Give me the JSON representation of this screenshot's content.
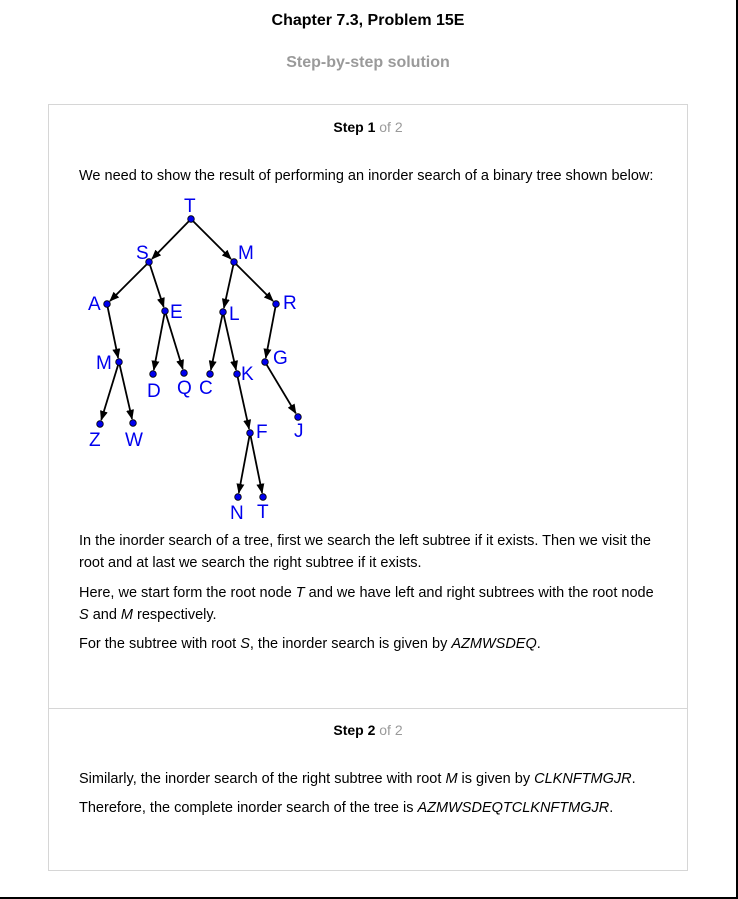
{
  "header": {
    "title": "Chapter 7.3, Problem 15E",
    "subtitle": "Step-by-step solution"
  },
  "step1": {
    "label": "Step 1",
    "of": "of 2",
    "intro": "We need to show the result of performing an inorder search of a binary tree shown below:",
    "para1": "In the inorder search of a tree, first we search the left subtree if it exists. Then we visit the root and at last we search the right subtree if it exists.",
    "para2": {
      "a": "Here, we start form the root node ",
      "v1": "T",
      "b": " and we have left and right subtrees with the root node ",
      "v2": "S",
      "c": " and ",
      "v3": "M",
      "d": " respectively."
    },
    "para3": {
      "a": "For the subtree with root ",
      "v1": "S",
      "b": ", the inorder search is given by ",
      "v2": "AZMWSDEQ",
      "c": "."
    }
  },
  "step2": {
    "label": "Step 2",
    "of": "of 2",
    "para1": {
      "a": "Similarly, the inorder search of the right subtree with root ",
      "v1": "M",
      "b": " is given by ",
      "v2": "CLKNFTMGJR",
      "c": "."
    },
    "para2": {
      "a": "Therefore, the complete inorder search of the tree is ",
      "v1": "AZMWSDEQTCLKNFTMGJR",
      "b": "."
    }
  },
  "tree": {
    "node_color": "#0000ee",
    "edge_color": "#000000",
    "nodes": [
      {
        "id": "T",
        "label": "T"
      },
      {
        "id": "S",
        "label": "S"
      },
      {
        "id": "M",
        "label": "M"
      },
      {
        "id": "A",
        "label": "A"
      },
      {
        "id": "E",
        "label": "E"
      },
      {
        "id": "L",
        "label": "L"
      },
      {
        "id": "R",
        "label": "R"
      },
      {
        "id": "M2",
        "label": "M"
      },
      {
        "id": "D",
        "label": "D"
      },
      {
        "id": "Q",
        "label": "Q"
      },
      {
        "id": "C",
        "label": "C"
      },
      {
        "id": "K",
        "label": "K"
      },
      {
        "id": "G",
        "label": "G"
      },
      {
        "id": "Z",
        "label": "Z"
      },
      {
        "id": "W",
        "label": "W"
      },
      {
        "id": "F",
        "label": "F"
      },
      {
        "id": "J",
        "label": "J"
      },
      {
        "id": "N",
        "label": "N"
      },
      {
        "id": "T2",
        "label": "T"
      }
    ],
    "edges": [
      [
        "T",
        "S"
      ],
      [
        "T",
        "M"
      ],
      [
        "S",
        "A"
      ],
      [
        "S",
        "E"
      ],
      [
        "M",
        "L"
      ],
      [
        "M",
        "R"
      ],
      [
        "A",
        "M2"
      ],
      [
        "E",
        "D"
      ],
      [
        "E",
        "Q"
      ],
      [
        "L",
        "C"
      ],
      [
        "L",
        "K"
      ],
      [
        "R",
        "G"
      ],
      [
        "M2",
        "Z"
      ],
      [
        "M2",
        "W"
      ],
      [
        "K",
        "F"
      ],
      [
        "G",
        "J"
      ],
      [
        "F",
        "N"
      ],
      [
        "F",
        "T2"
      ]
    ]
  }
}
